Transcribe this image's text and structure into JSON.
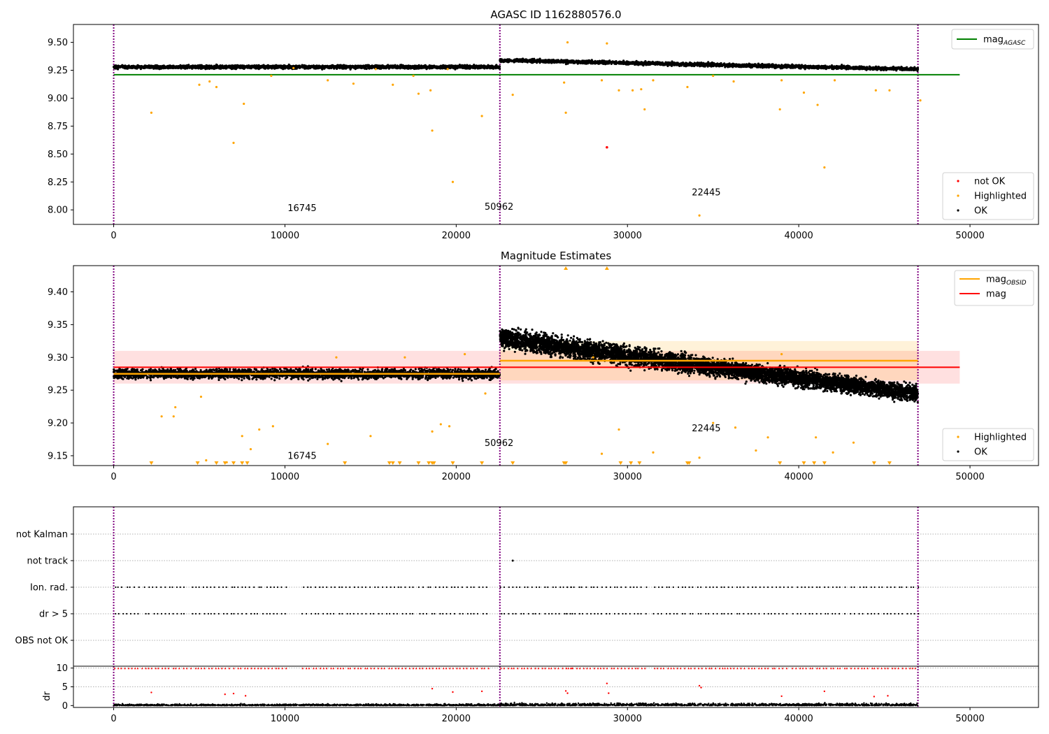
{
  "colors": {
    "ok": "#000000",
    "highlighted": "#ffa500",
    "not_ok": "#ff0000",
    "mag_agasc": "#008000",
    "mag": "#ff0000",
    "mag_obsid": "#ffa500",
    "obsid_boundary": "#800080",
    "grid": "#b0b0b0"
  },
  "chart_data": [
    {
      "type": "scatter",
      "title": "AGASC ID 1162880576.0",
      "xlim": [
        -2350,
        54000
      ],
      "ylim": [
        7.87,
        9.66
      ],
      "x_ticks": [
        0,
        10000,
        20000,
        30000,
        40000,
        50000
      ],
      "y_ticks": [
        8.0,
        8.25,
        8.5,
        8.75,
        9.0,
        9.25,
        9.5
      ],
      "y_tick_labels": [
        "8.00",
        "8.25",
        "8.50",
        "8.75",
        "9.00",
        "9.25",
        "9.50"
      ],
      "obsid_boundaries": [
        0,
        22550,
        46960
      ],
      "annotations": [
        {
          "text": "16745",
          "x": 11000,
          "y": 7.99
        },
        {
          "text": "50962",
          "x": 22500,
          "y": 8.0
        },
        {
          "text": "22445",
          "x": 34600,
          "y": 8.13
        }
      ],
      "lines": [
        {
          "name": "mag",
          "name_sub": "AGASC",
          "y": 9.21,
          "x_range": [
            0,
            49400
          ],
          "color": "#008000"
        }
      ],
      "ok_bands": [
        {
          "x_range": [
            0,
            22550
          ],
          "y_center_start": 9.28,
          "y_center_end": 9.28,
          "half_width": 0.03
        },
        {
          "x_range": [
            22550,
            46960
          ],
          "y_center_start": 9.34,
          "y_center_end": 9.26,
          "half_width": 0.03
        }
      ],
      "highlighted_points": [
        [
          2200,
          8.87
        ],
        [
          5000,
          9.12
        ],
        [
          5600,
          9.15
        ],
        [
          6000,
          9.1
        ],
        [
          7000,
          8.6
        ],
        [
          7600,
          8.95
        ],
        [
          9200,
          9.2
        ],
        [
          10500,
          9.27
        ],
        [
          12500,
          9.16
        ],
        [
          14000,
          9.13
        ],
        [
          15300,
          9.26
        ],
        [
          16300,
          9.12
        ],
        [
          17500,
          9.2
        ],
        [
          17800,
          9.04
        ],
        [
          18500,
          9.07
        ],
        [
          18600,
          8.71
        ],
        [
          19500,
          9.26
        ],
        [
          19800,
          8.25
        ],
        [
          21500,
          8.84
        ],
        [
          23300,
          9.03
        ],
        [
          26300,
          9.14
        ],
        [
          26400,
          8.87
        ],
        [
          26500,
          9.5
        ],
        [
          28500,
          9.16
        ],
        [
          28800,
          9.49
        ],
        [
          29500,
          9.07
        ],
        [
          30300,
          9.07
        ],
        [
          30800,
          9.08
        ],
        [
          31000,
          8.9
        ],
        [
          31500,
          9.16
        ],
        [
          33500,
          9.1
        ],
        [
          34200,
          7.95
        ],
        [
          35000,
          9.2
        ],
        [
          36200,
          9.15
        ],
        [
          38900,
          8.9
        ],
        [
          39000,
          9.16
        ],
        [
          40300,
          9.05
        ],
        [
          41100,
          8.94
        ],
        [
          41500,
          8.38
        ],
        [
          42100,
          9.16
        ],
        [
          44500,
          9.07
        ],
        [
          45300,
          9.07
        ],
        [
          47100,
          8.98
        ]
      ],
      "not_ok_points": [
        [
          28800,
          8.56
        ]
      ],
      "legends": [
        {
          "position": "upper-right",
          "items": [
            {
              "label": "mag",
              "sub": "AGASC",
              "kind": "line",
              "color": "#008000"
            }
          ]
        },
        {
          "position": "lower-right",
          "items": [
            {
              "label": "not OK",
              "kind": "dot",
              "color": "#ff0000"
            },
            {
              "label": "Highlighted",
              "kind": "dot",
              "color": "#ffa500"
            },
            {
              "label": "OK",
              "kind": "dot",
              "color": "#000000"
            }
          ]
        }
      ]
    },
    {
      "type": "scatter",
      "title": "Magnitude Estimates",
      "xlim": [
        -2350,
        54000
      ],
      "ylim": [
        9.135,
        9.44
      ],
      "x_ticks": [
        0,
        10000,
        20000,
        30000,
        40000,
        50000
      ],
      "y_ticks": [
        9.15,
        9.2,
        9.25,
        9.3,
        9.35,
        9.4
      ],
      "y_tick_labels": [
        "9.15",
        "9.20",
        "9.25",
        "9.30",
        "9.35",
        "9.40"
      ],
      "obsid_boundaries": [
        0,
        22550,
        46960
      ],
      "annotations": [
        {
          "text": "16745",
          "x": 11000,
          "y": 9.145
        },
        {
          "text": "50962",
          "x": 22500,
          "y": 9.165
        },
        {
          "text": "22445",
          "x": 34600,
          "y": 9.187
        }
      ],
      "shaded_bands": [
        {
          "x_range": [
            0,
            49400
          ],
          "y_range": [
            9.26,
            9.31
          ],
          "color": "#ff0000",
          "opacity": 0.12
        },
        {
          "x_range": [
            22550,
            46960
          ],
          "y_range": [
            9.265,
            9.325
          ],
          "color": "#ffa500",
          "opacity": 0.15
        }
      ],
      "lines": [
        {
          "name": "mag",
          "name_sub": "OBSID",
          "segments": [
            {
              "x_range": [
                0,
                22550
              ],
              "y": 9.275
            },
            {
              "x_range": [
                22550,
                46960
              ],
              "y": 9.295
            }
          ],
          "color": "#ffa500"
        },
        {
          "name": "mag",
          "y": 9.285,
          "x_range": [
            0,
            49400
          ],
          "color": "#ff0000"
        }
      ],
      "ok_bands": [
        {
          "x_range": [
            0,
            22550
          ],
          "y_center_start": 9.275,
          "y_center_end": 9.275,
          "half_width": 0.015
        },
        {
          "x_range": [
            22550,
            35000
          ],
          "y_center_start": 9.33,
          "y_center_end": 9.285,
          "half_width": 0.03
        },
        {
          "x_range": [
            35000,
            46960
          ],
          "y_center_start": 9.285,
          "y_center_end": 9.245,
          "half_width": 0.025
        }
      ],
      "highlighted_points": [
        [
          2800,
          9.21
        ],
        [
          3500,
          9.21
        ],
        [
          3600,
          9.224
        ],
        [
          5100,
          9.24
        ],
        [
          7500,
          9.18
        ],
        [
          8000,
          9.16
        ],
        [
          8500,
          9.19
        ],
        [
          9300,
          9.195
        ],
        [
          12500,
          9.168
        ],
        [
          13000,
          9.3
        ],
        [
          15000,
          9.18
        ],
        [
          17000,
          9.3
        ],
        [
          18600,
          9.187
        ],
        [
          19100,
          9.198
        ],
        [
          19600,
          9.195
        ],
        [
          20500,
          9.305
        ],
        [
          21700,
          9.245
        ],
        [
          28000,
          9.3
        ],
        [
          28500,
          9.153
        ],
        [
          29500,
          9.19
        ],
        [
          31500,
          9.155
        ],
        [
          34200,
          9.147
        ],
        [
          35000,
          9.2
        ],
        [
          36300,
          9.193
        ],
        [
          37500,
          9.158
        ],
        [
          38200,
          9.178
        ],
        [
          39000,
          9.305
        ],
        [
          41000,
          9.178
        ],
        [
          42000,
          9.155
        ],
        [
          43200,
          9.17
        ],
        [
          5400,
          9.143
        ],
        [
          6600,
          9.14
        ]
      ],
      "up_markers": [
        26400,
        28800
      ],
      "down_markers": [
        2200,
        4900,
        6000,
        6500,
        7000,
        7500,
        7800,
        13500,
        16100,
        16300,
        16700,
        17800,
        18400,
        18600,
        18700,
        19800,
        21500,
        23300,
        26300,
        26400,
        29600,
        30200,
        30700,
        33500,
        33600,
        38900,
        40300,
        40900,
        41500,
        44400,
        45300
      ],
      "legends": [
        {
          "position": "upper-right",
          "items": [
            {
              "label": "mag",
              "sub": "OBSID",
              "kind": "line",
              "color": "#ffa500"
            },
            {
              "label": "mag",
              "kind": "line",
              "color": "#ff0000"
            }
          ]
        },
        {
          "position": "lower-right",
          "items": [
            {
              "label": "Highlighted",
              "kind": "dot",
              "color": "#ffa500"
            },
            {
              "label": "OK",
              "kind": "dot",
              "color": "#000000"
            }
          ]
        }
      ]
    },
    {
      "type": "scatter",
      "title": "",
      "xlim": [
        -2350,
        54000
      ],
      "y_categories": [
        "not Kalman",
        "not track",
        "Ion. rad.",
        "dr > 5",
        "OBS not OK"
      ],
      "obsid_boundaries": [
        0,
        22550,
        46960
      ],
      "flag_points": {
        "not track": [
          23300
        ],
        "ion_rad_and_dr_segments": [
          [
            0,
            1600
          ],
          [
            1800,
            4200
          ],
          [
            4500,
            6800
          ],
          [
            7000,
            10100
          ],
          [
            11000,
            17600
          ],
          [
            17800,
            21800
          ],
          [
            22550,
            26900
          ],
          [
            26400,
            31000
          ],
          [
            31500,
            35600
          ],
          [
            35600,
            39300
          ],
          [
            39600,
            42800
          ],
          [
            43000,
            44200
          ],
          [
            44400,
            46960
          ]
        ]
      }
    },
    {
      "type": "scatter",
      "title": "",
      "ylabel": "dr",
      "xlim": [
        -2350,
        54000
      ],
      "ylim": [
        -0.5,
        10.5
      ],
      "x_ticks": [
        0,
        10000,
        20000,
        30000,
        40000,
        50000
      ],
      "y_ticks": [
        0,
        5,
        10
      ],
      "y_tick_labels": [
        "0",
        "5",
        "10"
      ],
      "obsid_boundaries": [
        0,
        22550,
        46960
      ],
      "clipped_marker_y": 10,
      "outlier_points": [
        [
          2200,
          3.5
        ],
        [
          6500,
          3.0
        ],
        [
          7000,
          3.2
        ],
        [
          18600,
          4.5
        ],
        [
          19800,
          3.6
        ],
        [
          21500,
          3.8
        ],
        [
          26400,
          3.9
        ],
        [
          26500,
          3.3
        ],
        [
          28800,
          5.9
        ],
        [
          28900,
          3.3
        ],
        [
          34200,
          5.3
        ],
        [
          34300,
          4.8
        ],
        [
          41500,
          3.8
        ],
        [
          7700,
          2.6
        ],
        [
          39000,
          2.5
        ],
        [
          44400,
          2.4
        ],
        [
          45200,
          2.6
        ]
      ]
    }
  ]
}
